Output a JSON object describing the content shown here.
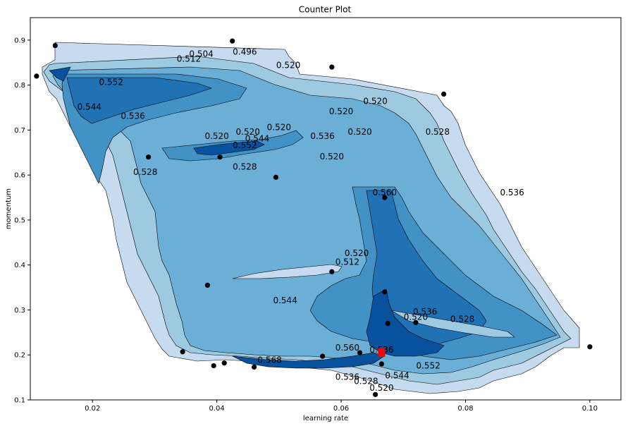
{
  "chart_data": {
    "type": "contour",
    "title": "Counter Plot",
    "xlabel": "learning rate",
    "ylabel": "momentum",
    "xlim": [
      0.01,
      0.105
    ],
    "ylim": [
      0.1,
      0.95
    ],
    "xticks": [
      0.02,
      0.04,
      0.06,
      0.08,
      0.1
    ],
    "xtick_labels": [
      "0.02",
      "0.04",
      "0.06",
      "0.08",
      "0.10"
    ],
    "yticks": [
      0.1,
      0.2,
      0.3,
      0.4,
      0.5,
      0.6,
      0.7,
      0.8,
      0.9
    ],
    "ytick_labels": [
      "0.1",
      "0.2",
      "0.3",
      "0.4",
      "0.5",
      "0.6",
      "0.7",
      "0.8",
      "0.9"
    ],
    "colormap": "Blues",
    "contour_levels": [
      0.496,
      0.504,
      0.512,
      0.52,
      0.528,
      0.536,
      0.544,
      0.552,
      0.56,
      0.568
    ],
    "contour_labels": [
      {
        "text": "0.496",
        "x": 0.0445,
        "y": 0.868
      },
      {
        "text": "0.504",
        "x": 0.0375,
        "y": 0.863
      },
      {
        "text": "0.512",
        "x": 0.0355,
        "y": 0.852
      },
      {
        "text": "0.520",
        "x": 0.0515,
        "y": 0.838
      },
      {
        "text": "0.552",
        "x": 0.023,
        "y": 0.8
      },
      {
        "text": "0.544",
        "x": 0.0195,
        "y": 0.745
      },
      {
        "text": "0.536",
        "x": 0.0265,
        "y": 0.725
      },
      {
        "text": "0.520",
        "x": 0.06,
        "y": 0.735
      },
      {
        "text": "0.520",
        "x": 0.0655,
        "y": 0.758
      },
      {
        "text": "0.520",
        "x": 0.04,
        "y": 0.68
      },
      {
        "text": "0.520",
        "x": 0.045,
        "y": 0.69
      },
      {
        "text": "0.544",
        "x": 0.0465,
        "y": 0.675
      },
      {
        "text": "0.552",
        "x": 0.0445,
        "y": 0.66
      },
      {
        "text": "0.520",
        "x": 0.05,
        "y": 0.7
      },
      {
        "text": "0.536",
        "x": 0.057,
        "y": 0.68
      },
      {
        "text": "0.520",
        "x": 0.063,
        "y": 0.69
      },
      {
        "text": "0.528",
        "x": 0.0755,
        "y": 0.69
      },
      {
        "text": "0.520",
        "x": 0.0585,
        "y": 0.635
      },
      {
        "text": "0.528",
        "x": 0.0445,
        "y": 0.612
      },
      {
        "text": "0.528",
        "x": 0.0285,
        "y": 0.6
      },
      {
        "text": "0.560",
        "x": 0.067,
        "y": 0.555
      },
      {
        "text": "0.536",
        "x": 0.0875,
        "y": 0.555
      },
      {
        "text": "0.520",
        "x": 0.0625,
        "y": 0.42
      },
      {
        "text": "0.512",
        "x": 0.061,
        "y": 0.4
      },
      {
        "text": "0.544",
        "x": 0.051,
        "y": 0.315
      },
      {
        "text": "0.536",
        "x": 0.0735,
        "y": 0.29
      },
      {
        "text": "0.520",
        "x": 0.072,
        "y": 0.278
      },
      {
        "text": "0.528",
        "x": 0.0795,
        "y": 0.273
      },
      {
        "text": "0.560",
        "x": 0.061,
        "y": 0.21
      },
      {
        "text": "0.536",
        "x": 0.0665,
        "y": 0.205
      },
      {
        "text": "0.568",
        "x": 0.0485,
        "y": 0.182
      },
      {
        "text": "0.552",
        "x": 0.074,
        "y": 0.17
      },
      {
        "text": "0.544",
        "x": 0.069,
        "y": 0.148
      },
      {
        "text": "0.536",
        "x": 0.061,
        "y": 0.145
      },
      {
        "text": "0.528",
        "x": 0.064,
        "y": 0.135
      },
      {
        "text": "0.520",
        "x": 0.0665,
        "y": 0.12
      }
    ],
    "points": [
      {
        "x": 0.014,
        "y": 0.888
      },
      {
        "x": 0.011,
        "y": 0.82
      },
      {
        "x": 0.0425,
        "y": 0.898
      },
      {
        "x": 0.0585,
        "y": 0.84
      },
      {
        "x": 0.0765,
        "y": 0.78
      },
      {
        "x": 0.029,
        "y": 0.64
      },
      {
        "x": 0.0405,
        "y": 0.64
      },
      {
        "x": 0.0495,
        "y": 0.595
      },
      {
        "x": 0.067,
        "y": 0.55
      },
      {
        "x": 0.0385,
        "y": 0.355
      },
      {
        "x": 0.0585,
        "y": 0.385
      },
      {
        "x": 0.067,
        "y": 0.34
      },
      {
        "x": 0.0675,
        "y": 0.27
      },
      {
        "x": 0.072,
        "y": 0.272
      },
      {
        "x": 0.0345,
        "y": 0.207
      },
      {
        "x": 0.0395,
        "y": 0.176
      },
      {
        "x": 0.0412,
        "y": 0.182
      },
      {
        "x": 0.046,
        "y": 0.173
      },
      {
        "x": 0.057,
        "y": 0.197
      },
      {
        "x": 0.063,
        "y": 0.205
      },
      {
        "x": 0.0665,
        "y": 0.18
      },
      {
        "x": 0.0655,
        "y": 0.112
      },
      {
        "x": 0.1,
        "y": 0.218
      }
    ],
    "best_point": {
      "x": 0.0665,
      "y": 0.205,
      "color": "#ff0000"
    },
    "fill_colors": [
      "#c6dbef",
      "#9ecae1",
      "#6baed6",
      "#4292c6",
      "#2171b5",
      "#08519c"
    ]
  }
}
